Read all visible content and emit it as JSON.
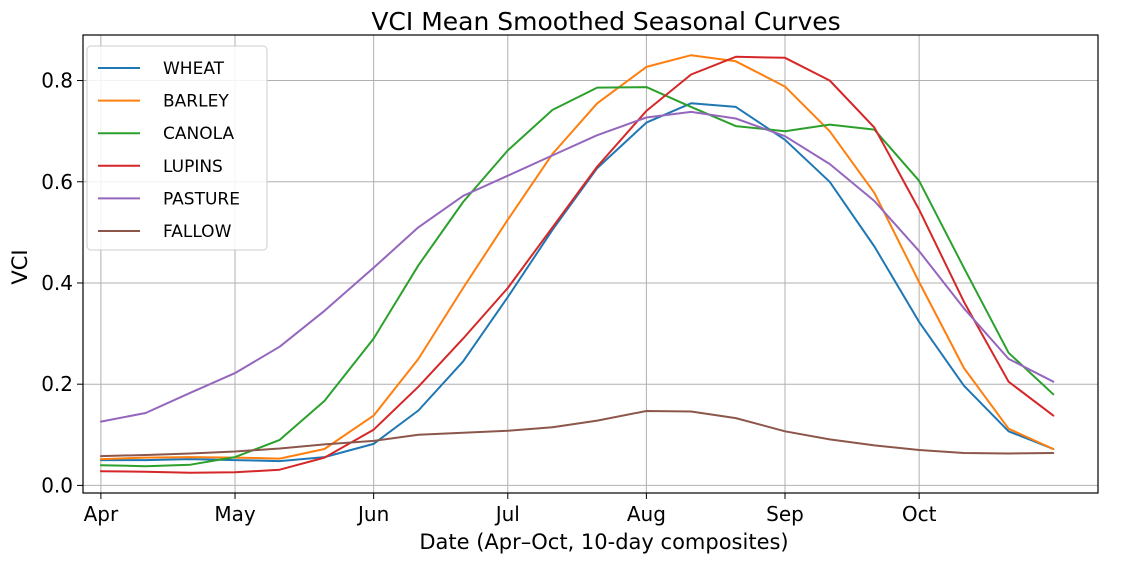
{
  "chart_data": {
    "type": "line",
    "title": "VCI Mean Smoothed Seasonal Curves",
    "xlabel": "Date (Apr–Oct, 10-day composites)",
    "ylabel": "VCI",
    "x_ticks": [
      "Apr",
      "May",
      "Jun",
      "Jul",
      "Aug",
      "Sep",
      "Oct"
    ],
    "x_dates": [
      "Apr 1",
      "Apr 11",
      "Apr 21",
      "May 1",
      "May 11",
      "May 21",
      "Jun 1",
      "Jun 11",
      "Jun 21",
      "Jul 1",
      "Jul 11",
      "Jul 21",
      "Aug 1",
      "Aug 11",
      "Aug 21",
      "Sep 1",
      "Sep 11",
      "Sep 21",
      "Oct 1",
      "Oct 11",
      "Oct 21",
      "Oct 31"
    ],
    "x_day_of_year": [
      91,
      101,
      111,
      121,
      131,
      141,
      152,
      162,
      172,
      182,
      192,
      202,
      213,
      223,
      233,
      244,
      254,
      264,
      274,
      284,
      294,
      304
    ],
    "y_ticks": [
      0.0,
      0.2,
      0.4,
      0.6,
      0.8
    ],
    "y_tick_labels": [
      "0.0",
      "0.2",
      "0.4",
      "0.6",
      "0.8"
    ],
    "ylim": [
      -0.015,
      0.89
    ],
    "grid": true,
    "legend_position": "top-left",
    "series": [
      {
        "name": "WHEAT",
        "color": "#1f77b4",
        "values": [
          0.05,
          0.05,
          0.052,
          0.05,
          0.048,
          0.056,
          0.082,
          0.148,
          0.245,
          0.372,
          0.505,
          0.627,
          0.717,
          0.755,
          0.748,
          0.683,
          0.6,
          0.472,
          0.323,
          0.197,
          0.107,
          0.072
        ]
      },
      {
        "name": "BARLEY",
        "color": "#ff7f0e",
        "values": [
          0.052,
          0.055,
          0.056,
          0.055,
          0.053,
          0.072,
          0.138,
          0.25,
          0.39,
          0.525,
          0.655,
          0.755,
          0.827,
          0.85,
          0.838,
          0.788,
          0.7,
          0.578,
          0.402,
          0.232,
          0.112,
          0.072
        ]
      },
      {
        "name": "CANOLA",
        "color": "#2ca02c",
        "values": [
          0.04,
          0.038,
          0.041,
          0.056,
          0.09,
          0.167,
          0.29,
          0.435,
          0.56,
          0.662,
          0.742,
          0.786,
          0.787,
          0.748,
          0.71,
          0.7,
          0.713,
          0.703,
          0.602,
          0.43,
          0.262,
          0.18
        ]
      },
      {
        "name": "LUPINS",
        "color": "#d62728",
        "values": [
          0.028,
          0.027,
          0.025,
          0.026,
          0.031,
          0.055,
          0.11,
          0.195,
          0.29,
          0.39,
          0.51,
          0.63,
          0.74,
          0.812,
          0.847,
          0.845,
          0.8,
          0.707,
          0.545,
          0.363,
          0.205,
          0.138
        ]
      },
      {
        "name": "PASTURE",
        "color": "#9467bd",
        "values": [
          0.126,
          0.143,
          0.183,
          0.222,
          0.274,
          0.345,
          0.43,
          0.51,
          0.572,
          0.612,
          0.652,
          0.692,
          0.727,
          0.738,
          0.725,
          0.69,
          0.635,
          0.562,
          0.463,
          0.35,
          0.25,
          0.205
        ]
      },
      {
        "name": "FALLOW",
        "color": "#8c564b",
        "values": [
          0.058,
          0.06,
          0.063,
          0.067,
          0.073,
          0.081,
          0.088,
          0.1,
          0.104,
          0.108,
          0.115,
          0.128,
          0.147,
          0.146,
          0.133,
          0.107,
          0.091,
          0.079,
          0.07,
          0.064,
          0.063,
          0.064
        ]
      }
    ]
  }
}
